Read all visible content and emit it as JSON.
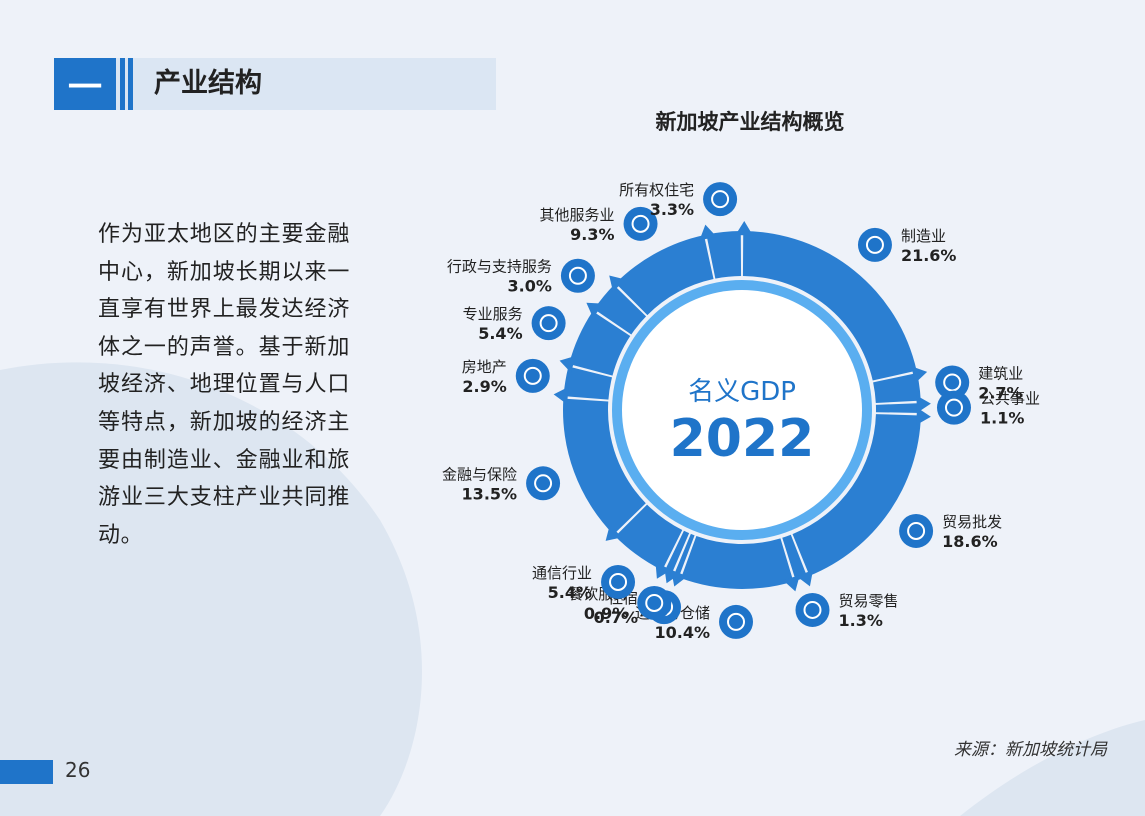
{
  "section": {
    "number": "一",
    "title": "产业结构"
  },
  "intro_text": "作为亚太地区的主要金融中心，新加坡长期以来一直享有世界上最发达经济体之一的声誉。基于新加坡经济、地理位置与人口等特点，新加坡的经济主要由制造业、金融业和旅游业三大支柱产业共同推动。",
  "source": "来源：新加坡统计局",
  "page_number": "26",
  "colors": {
    "primary": "#1f74c9",
    "ring_outer": "#2b7fd2",
    "ring_inner": "#5aaef0",
    "text_dark": "#222222"
  },
  "chart_data": {
    "type": "pie",
    "title": "新加坡产业结构概览",
    "center_label": "名义GDP",
    "center_year": "2022",
    "slices": [
      {
        "label": "制造业",
        "value": 21.6,
        "value_label": "21.6%",
        "icon": "box-icon"
      },
      {
        "label": "建筑业",
        "value": 2.7,
        "value_label": "2.7%",
        "icon": "building-icon"
      },
      {
        "label": "公共事业",
        "value": 1.1,
        "value_label": "1.1%",
        "icon": "people-icon"
      },
      {
        "label": "贸易批发",
        "value": 18.6,
        "value_label": "18.6%",
        "icon": "pie-chart-icon"
      },
      {
        "label": "贸易零售",
        "value": 1.3,
        "value_label": "1.3%",
        "icon": "safe-icon"
      },
      {
        "label": "运输与仓储",
        "value": 10.4,
        "value_label": "10.4%",
        "icon": "cart-icon"
      },
      {
        "label": "住宿",
        "value": 0.7,
        "value_label": "0.7%",
        "icon": "bank-icon"
      },
      {
        "label": "餐饮服务",
        "value": 0.9,
        "value_label": "0.9%",
        "icon": "coins-icon"
      },
      {
        "label": "通信行业",
        "value": 5.4,
        "value_label": "5.4%",
        "icon": "phone-icon"
      },
      {
        "label": "金融与保险",
        "value": 13.5,
        "value_label": "13.5%",
        "icon": "dollar-icon"
      },
      {
        "label": "房地产",
        "value": 2.9,
        "value_label": "2.9%",
        "icon": "document-icon"
      },
      {
        "label": "专业服务",
        "value": 5.4,
        "value_label": "5.4%",
        "icon": "telephone-icon"
      },
      {
        "label": "行政与支持服务",
        "value": 3.0,
        "value_label": "3.0%",
        "icon": "org-chart-icon"
      },
      {
        "label": "其他服务业",
        "value": 9.3,
        "value_label": "9.3%",
        "icon": "person-icon"
      },
      {
        "label": "所有权住宅",
        "value": 3.3,
        "value_label": "3.3%",
        "icon": "house-icon"
      }
    ]
  }
}
